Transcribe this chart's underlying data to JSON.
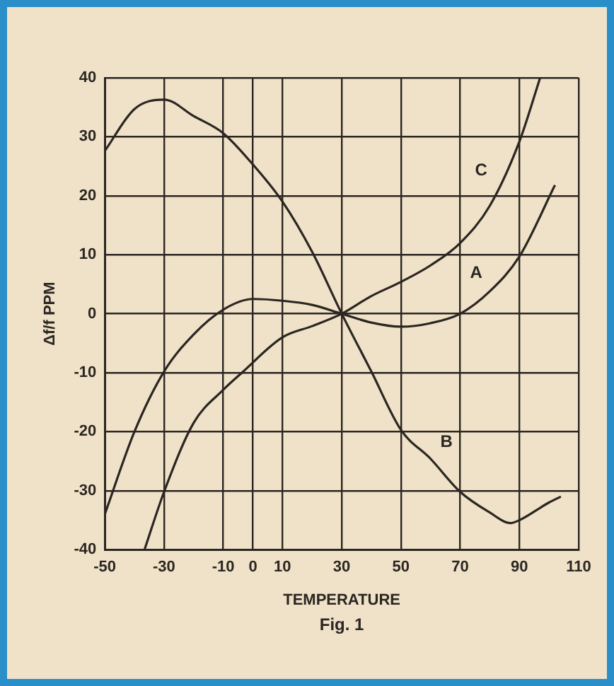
{
  "chart_data": {
    "type": "line",
    "xlabel": "TEMPERATURE",
    "ylabel": "Δf/f PPM",
    "xlim": [
      -50,
      110
    ],
    "xticks": [
      -50,
      -30,
      -10,
      0,
      10,
      30,
      50,
      70,
      90,
      110
    ],
    "ylim": [
      -40,
      40
    ],
    "yticks": [
      -40,
      -30,
      -20,
      -10,
      0,
      10,
      20,
      30,
      40
    ],
    "grid": true,
    "marker": "none",
    "line_style": "solid",
    "series": [
      {
        "color": "#2b2622",
        "x": [
          -50,
          -40,
          -30,
          -20,
          -10,
          0,
          10,
          20,
          30,
          40,
          50,
          60,
          70,
          80,
          90,
          102
        ],
        "values": [
          -34,
          -20,
          -9.8,
          -3.5,
          0.7,
          2.5,
          2.2,
          1.5,
          0,
          -1.5,
          -2.2,
          -1.6,
          0,
          3.8,
          9.7,
          21.8
        ]
      },
      {
        "color": "#2b2622",
        "x": [
          -50,
          -40,
          -30,
          -20,
          -10,
          0,
          10,
          20,
          30,
          40,
          50,
          60,
          70,
          80,
          87,
          90,
          100,
          104
        ],
        "values": [
          27.6,
          34.7,
          36.3,
          33.5,
          30.6,
          25.3,
          19,
          10.5,
          0,
          -9.8,
          -19.7,
          -24.6,
          -30.2,
          -33.7,
          -35.5,
          -35,
          -32,
          -31
        ]
      },
      {
        "color": "#2b2622",
        "x": [
          -36.6,
          -30,
          -20,
          -10,
          -3.7,
          10,
          20,
          30,
          40,
          50,
          60,
          70,
          80,
          90,
          97
        ],
        "values": [
          -40,
          -30.2,
          -18.5,
          -12.9,
          -10,
          -4,
          -2.1,
          0,
          3,
          5.4,
          8.2,
          12,
          18.3,
          29.2,
          40
        ]
      }
    ],
    "annotations": [
      {
        "text": "A",
        "x": 80,
        "y": 3.8
      },
      {
        "text": "B",
        "x": 60,
        "y": -24.6
      },
      {
        "text": "C",
        "x": 84,
        "y": 22.7
      },
      "Fig. 1"
    ]
  }
}
